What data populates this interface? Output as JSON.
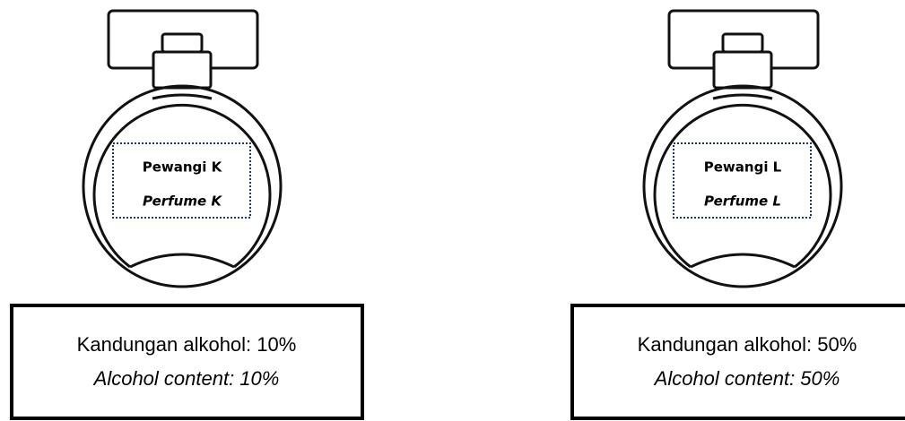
{
  "items": [
    {
      "label": "Pewangi K",
      "label_en": "Perfume K",
      "content": "Kandungan alkohol: 10%",
      "content_en": "Alcohol content: 10%"
    },
    {
      "label": "Pewangi L",
      "label_en": "Perfume L",
      "content": "Kandungan alkohol: 50%",
      "content_en": "Alcohol content: 50%"
    }
  ]
}
